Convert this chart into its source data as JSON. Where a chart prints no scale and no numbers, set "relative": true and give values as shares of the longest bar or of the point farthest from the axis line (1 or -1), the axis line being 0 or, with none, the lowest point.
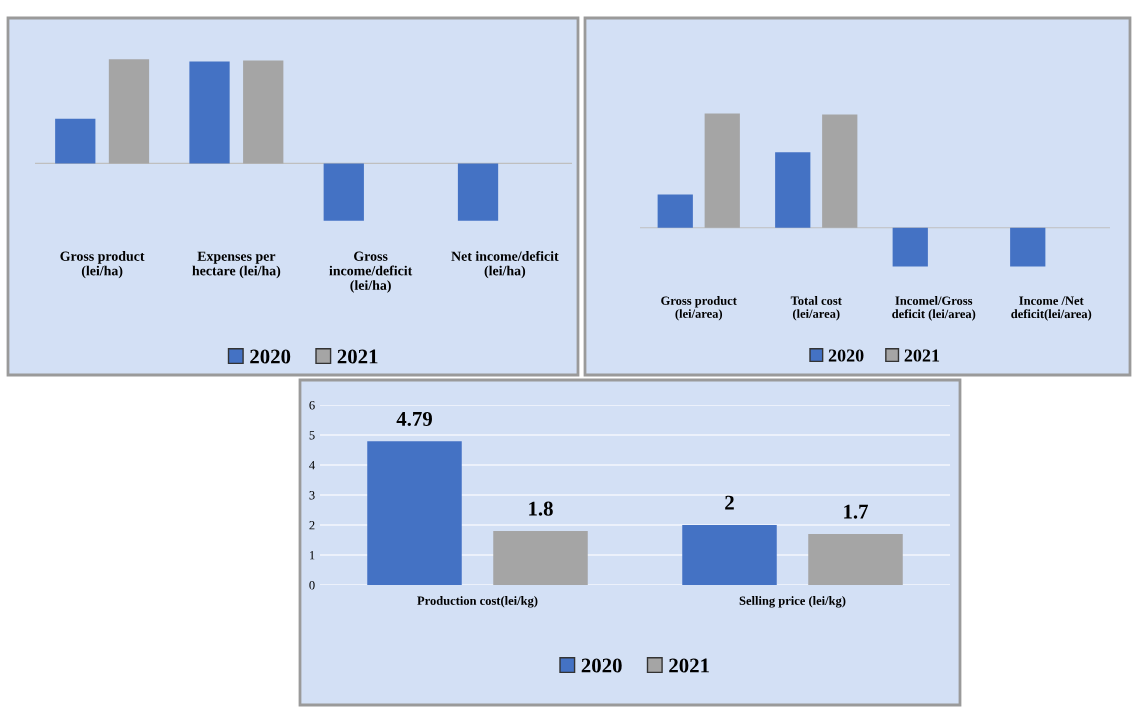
{
  "chart_data": [
    {
      "type": "bar",
      "relative": true,
      "categories": [
        "Gross product\n(lei/ha)",
        "Expenses per\nhectare (lei/ha)",
        "Gross\nincome/deficit\n(lei/ha)",
        "Net income/deficit\n(lei/ha)"
      ],
      "legend": "bottom",
      "tick_labels": "x",
      "series": [
        {
          "name": "2020",
          "color": "#4472c4",
          "values": [
            0.43,
            0.98,
            -0.55,
            -0.55
          ]
        },
        {
          "name": "2021",
          "color": "#a5a5a5",
          "values": [
            1,
            0.99,
            0,
            0
          ]
        }
      ]
    },
    {
      "type": "bar",
      "relative": true,
      "categories": [
        "Gross product\n(lei/area)",
        "Total cost\n(lei/area)",
        "Incomel/Gross\ndeficit (lei/area)",
        "Income /Net\ndeficit(lei/area)"
      ],
      "legend": "bottom",
      "tick_labels": "x",
      "series": [
        {
          "name": "2020",
          "color": "#4472c4",
          "values": [
            0.29,
            0.66,
            -0.34,
            -0.34
          ]
        },
        {
          "name": "2021",
          "color": "#a5a5a5",
          "values": [
            1,
            0.99,
            0,
            0
          ]
        }
      ]
    },
    {
      "type": "bar",
      "categories": [
        "Production cost(lei/kg)",
        "Selling price (lei/kg)"
      ],
      "ylim": [
        0,
        6
      ],
      "yticks": [
        0,
        1,
        2,
        3,
        4,
        5,
        6
      ],
      "grid": "y",
      "legend": "bottom",
      "data_labels": true,
      "series": [
        {
          "name": "2020",
          "color": "#4472c4",
          "values": [
            4.79,
            2
          ]
        },
        {
          "name": "2021",
          "color": "#a5a5a5",
          "values": [
            1.8,
            1.7
          ]
        }
      ]
    }
  ]
}
